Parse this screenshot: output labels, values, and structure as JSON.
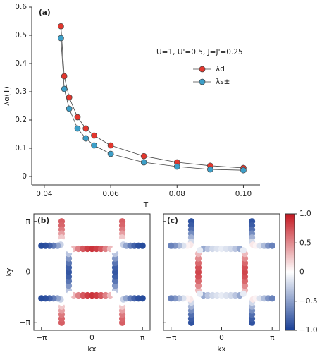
{
  "chart_data": [
    {
      "type": "line",
      "panel_label": "(a)",
      "xlabel": "T",
      "ylabel": "λα(T)",
      "annotation": "U=1, U'=0.5, J=J'=0.25",
      "legend": "center right",
      "x": [
        0.045,
        0.046,
        0.0475,
        0.05,
        0.0525,
        0.055,
        0.06,
        0.07,
        0.08,
        0.09,
        0.1
      ],
      "series": [
        {
          "name": "λd",
          "color": "#e2372e",
          "values": [
            0.532,
            0.355,
            0.28,
            0.21,
            0.17,
            0.145,
            0.11,
            0.072,
            0.05,
            0.038,
            0.03
          ]
        },
        {
          "name": "λs±",
          "color": "#3d9fc8",
          "values": [
            0.49,
            0.31,
            0.24,
            0.17,
            0.135,
            0.11,
            0.08,
            0.05,
            0.035,
            0.025,
            0.022
          ]
        }
      ],
      "xlim": [
        0.0362,
        0.105
      ],
      "ylim": [
        -0.03,
        0.6
      ],
      "xticks": [
        0.04,
        0.06,
        0.08,
        {
          "value": 0.1,
          "label": "0.10"
        }
      ],
      "yticks": [
        0,
        0.1,
        0.2,
        0.3,
        0.4,
        0.5,
        0.6
      ]
    },
    {
      "type": "scatter",
      "panel_label": "(b)",
      "xlabel": "kx",
      "ylabel": "ky",
      "x": [
        0.6,
        0.6,
        0.6,
        0.6,
        0.6,
        0.6,
        0.62,
        0.68,
        0.76,
        0.84,
        0.92,
        1,
        -0.6,
        -0.6,
        -0.6,
        -0.6,
        -0.6,
        -0.6,
        -0.62,
        -0.68,
        -0.76,
        -0.84,
        -0.92,
        -1,
        -0.6,
        -0.6,
        -0.6,
        -0.6,
        -0.6,
        -0.6,
        -0.62,
        -0.68,
        -0.76,
        -0.84,
        -0.92,
        -1,
        0.6,
        0.6,
        0.6,
        0.6,
        0.6,
        0.6,
        0.62,
        0.68,
        0.76,
        0.84,
        0.92,
        1,
        -0.36,
        -0.27,
        -0.18,
        -0.09,
        0,
        0.09,
        0.18,
        0.27,
        0.36,
        -0.36,
        -0.27,
        -0.18,
        -0.09,
        0,
        0.09,
        0.18,
        0.27,
        0.36,
        -0.46,
        -0.46,
        -0.46,
        -0.46,
        -0.46,
        -0.46,
        -0.46,
        -0.46,
        -0.46,
        0.46,
        0.46,
        0.46,
        0.46,
        0.46,
        0.46,
        0.46,
        0.46,
        0.46,
        0.43,
        -0.43,
        -0.43,
        0.43
      ],
      "y": [
        1,
        0.92,
        0.84,
        0.76,
        0.68,
        0.6,
        0.54,
        0.52,
        0.52,
        0.52,
        0.52,
        0.52,
        1,
        0.92,
        0.84,
        0.76,
        0.68,
        0.6,
        0.54,
        0.52,
        0.52,
        0.52,
        0.52,
        0.52,
        -1,
        -0.92,
        -0.84,
        -0.76,
        -0.68,
        -0.6,
        -0.54,
        -0.52,
        -0.52,
        -0.52,
        -0.52,
        -0.52,
        -1,
        -0.92,
        -0.84,
        -0.76,
        -0.68,
        -0.6,
        -0.54,
        -0.52,
        -0.52,
        -0.52,
        -0.52,
        -0.52,
        0.46,
        0.46,
        0.46,
        0.46,
        0.46,
        0.46,
        0.46,
        0.46,
        0.46,
        -0.46,
        -0.46,
        -0.46,
        -0.46,
        -0.46,
        -0.46,
        -0.46,
        -0.46,
        -0.46,
        -0.36,
        -0.27,
        -0.18,
        -0.09,
        0,
        0.09,
        0.18,
        0.27,
        0.36,
        -0.36,
        -0.27,
        -0.18,
        -0.09,
        0,
        0.09,
        0.18,
        0.27,
        0.36,
        0.43,
        0.43,
        -0.43,
        -0.43
      ],
      "values": [
        0.69,
        0.66,
        0.57,
        0.42,
        0.23,
        0,
        -0.24,
        -0.47,
        -0.67,
        -0.81,
        -0.91,
        -0.94,
        0.69,
        0.66,
        0.57,
        0.42,
        0.23,
        0,
        -0.24,
        -0.47,
        -0.67,
        -0.81,
        -0.91,
        -0.94,
        0.69,
        0.66,
        0.57,
        0.42,
        0.23,
        0,
        -0.24,
        -0.47,
        -0.67,
        -0.81,
        -0.91,
        -0.94,
        0.69,
        0.66,
        0.57,
        0.42,
        0.23,
        0,
        -0.24,
        -0.47,
        -0.67,
        -0.81,
        -0.91,
        -0.94,
        0.3,
        0.54,
        0.72,
        0.83,
        0.88,
        0.83,
        0.72,
        0.54,
        0.3,
        0.3,
        0.54,
        0.72,
        0.83,
        0.88,
        0.83,
        0.72,
        0.54,
        0.3,
        -0.3,
        -0.54,
        -0.72,
        -0.83,
        -0.88,
        -0.83,
        -0.72,
        -0.54,
        -0.3,
        -0.3,
        -0.54,
        -0.72,
        -0.83,
        -0.88,
        -0.83,
        -0.72,
        -0.54,
        -0.3,
        0,
        0,
        0,
        0
      ],
      "xlim": [
        -1.15,
        1.15
      ],
      "ylim": [
        -1.15,
        1.15
      ],
      "xticks": [
        {
          "value": -1,
          "label": "−π"
        },
        0,
        {
          "value": 1,
          "label": "π"
        }
      ],
      "yticks": [
        {
          "value": -1,
          "label": "−π"
        },
        0,
        {
          "value": 1,
          "label": "π"
        }
      ]
    },
    {
      "type": "scatter",
      "panel_label": "(c)",
      "xlabel": "kx",
      "ytick_labels": false,
      "x": [
        0.6,
        0.6,
        0.6,
        0.6,
        0.6,
        0.6,
        0.62,
        0.68,
        0.76,
        0.84,
        0.92,
        1,
        -0.6,
        -0.6,
        -0.6,
        -0.6,
        -0.6,
        -0.6,
        -0.62,
        -0.68,
        -0.76,
        -0.84,
        -0.92,
        -1,
        -0.6,
        -0.6,
        -0.6,
        -0.6,
        -0.6,
        -0.6,
        -0.62,
        -0.68,
        -0.76,
        -0.84,
        -0.92,
        -1,
        0.6,
        0.6,
        0.6,
        0.6,
        0.6,
        0.6,
        0.62,
        0.68,
        0.76,
        0.84,
        0.92,
        1,
        -0.36,
        -0.27,
        -0.18,
        -0.09,
        0,
        0.09,
        0.18,
        0.27,
        0.36,
        -0.36,
        -0.27,
        -0.18,
        -0.09,
        0,
        0.09,
        0.18,
        0.27,
        0.36,
        -0.46,
        -0.46,
        -0.46,
        -0.46,
        -0.46,
        -0.46,
        -0.46,
        -0.46,
        -0.46,
        0.46,
        0.46,
        0.46,
        0.46,
        0.46,
        0.46,
        0.46,
        0.46,
        0.46,
        0.43,
        -0.43,
        -0.43,
        0.43
      ],
      "y": [
        1,
        0.92,
        0.84,
        0.76,
        0.68,
        0.6,
        0.54,
        0.52,
        0.52,
        0.52,
        0.52,
        0.52,
        1,
        0.92,
        0.84,
        0.76,
        0.68,
        0.6,
        0.54,
        0.52,
        0.52,
        0.52,
        0.52,
        0.52,
        -1,
        -0.92,
        -0.84,
        -0.76,
        -0.68,
        -0.6,
        -0.54,
        -0.52,
        -0.52,
        -0.52,
        -0.52,
        -0.52,
        -1,
        -0.92,
        -0.84,
        -0.76,
        -0.68,
        -0.6,
        -0.54,
        -0.52,
        -0.52,
        -0.52,
        -0.52,
        -0.52,
        0.46,
        0.46,
        0.46,
        0.46,
        0.46,
        0.46,
        0.46,
        0.46,
        0.46,
        -0.46,
        -0.46,
        -0.46,
        -0.46,
        -0.46,
        -0.46,
        -0.46,
        -0.46,
        -0.46,
        -0.36,
        -0.27,
        -0.18,
        -0.09,
        0,
        0.09,
        0.18,
        0.27,
        0.36,
        -0.36,
        -0.27,
        -0.18,
        -0.09,
        0,
        0.09,
        0.18,
        0.27,
        0.36,
        0.43,
        0.43,
        -0.43,
        -0.43
      ],
      "values": [
        -0.9,
        -0.85,
        -0.75,
        -0.6,
        -0.4,
        -0.2,
        0.1,
        0.05,
        -0.15,
        -0.35,
        -0.55,
        -0.65,
        -0.9,
        -0.85,
        -0.75,
        -0.6,
        -0.4,
        -0.2,
        0.1,
        0.05,
        -0.15,
        -0.35,
        -0.55,
        -0.65,
        -0.9,
        -0.85,
        -0.75,
        -0.6,
        -0.4,
        -0.2,
        0.1,
        0.05,
        -0.15,
        -0.35,
        -0.55,
        -0.65,
        -0.9,
        -0.85,
        -0.75,
        -0.6,
        -0.4,
        -0.2,
        0.1,
        0.05,
        -0.15,
        -0.35,
        -0.55,
        -0.65,
        -0.45,
        -0.3,
        -0.2,
        -0.15,
        -0.1,
        -0.15,
        -0.2,
        -0.3,
        -0.45,
        -0.45,
        -0.3,
        -0.2,
        -0.15,
        -0.1,
        -0.15,
        -0.2,
        -0.3,
        -0.45,
        0.3,
        0.5,
        0.65,
        0.75,
        0.8,
        0.75,
        0.65,
        0.5,
        0.3,
        0.3,
        0.5,
        0.65,
        0.75,
        0.8,
        0.75,
        0.65,
        0.5,
        0.3,
        -0.1,
        -0.1,
        -0.1,
        -0.1
      ],
      "xlim": [
        -1.15,
        1.15
      ],
      "ylim": [
        -1.15,
        1.15
      ],
      "xticks": [
        {
          "value": -1,
          "label": "−π"
        },
        0,
        {
          "value": 1,
          "label": "π"
        }
      ],
      "yticks": [
        -1,
        0,
        1
      ]
    },
    {
      "type": "colorbar",
      "colors": [
        "#183f96",
        "#ffffff",
        "#c4161f"
      ],
      "clim": [
        -1,
        1
      ],
      "ticks": [
        {
          "value": 1,
          "label": "1.0"
        },
        0.5,
        0,
        {
          "value": -0.5,
          "label": "−0.5"
        },
        {
          "value": -1,
          "label": "−1.0"
        }
      ]
    }
  ]
}
